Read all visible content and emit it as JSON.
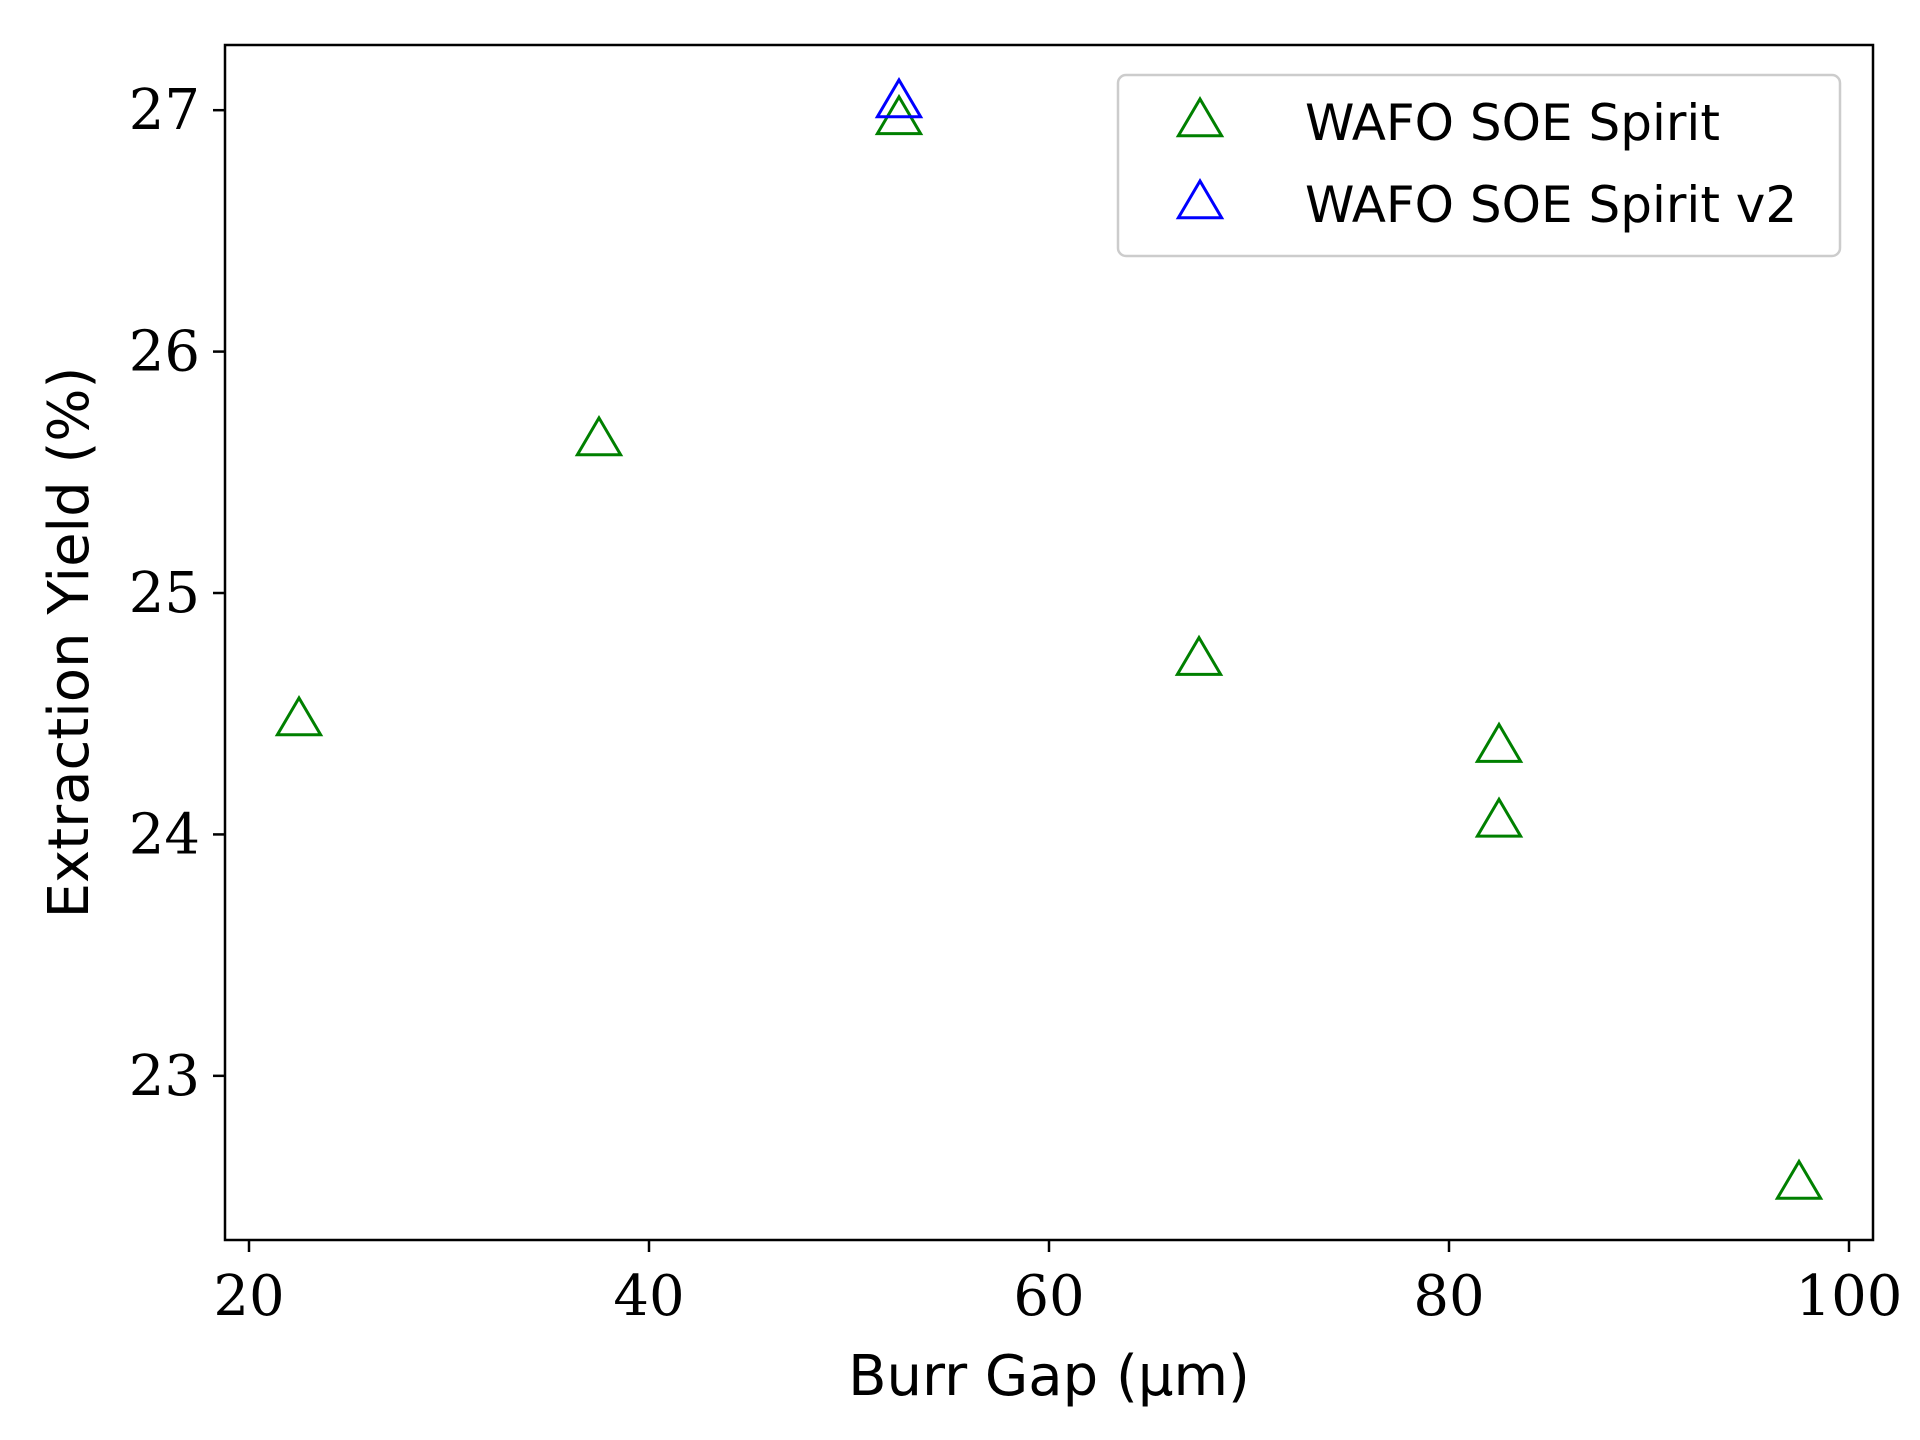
{
  "chart_data": {
    "type": "scatter",
    "title": "",
    "xlabel": "Burr Gap (μm)",
    "ylabel": "Extraction Yield (%)",
    "xlim": [
      18.8,
      101.2
    ],
    "ylim": [
      22.32,
      27.27
    ],
    "xticks": [
      20,
      40,
      60,
      80,
      100
    ],
    "yticks": [
      23,
      24,
      25,
      26,
      27
    ],
    "grid": false,
    "legend_position": "top-right",
    "marker": "triangle-open",
    "series": [
      {
        "name": "WAFO SOE Spirit",
        "color": "#008000",
        "x": [
          22.5,
          37.5,
          52.5,
          67.5,
          82.5,
          82.5,
          97.5
        ],
        "y": [
          24.47,
          25.63,
          26.96,
          24.72,
          24.36,
          24.05,
          22.55
        ]
      },
      {
        "name": "WAFO SOE Spirit v2",
        "color": "#0000ff",
        "x": [
          52.5
        ],
        "y": [
          27.03
        ]
      }
    ]
  }
}
